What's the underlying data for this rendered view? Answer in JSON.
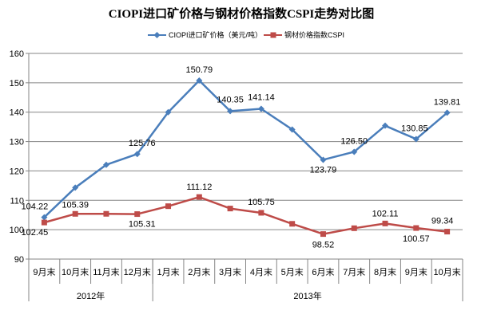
{
  "chart_data": {
    "type": "line",
    "title": "CIOPI进口矿价格与钢材价格指数CSPI走势对比图",
    "categories": [
      "9月末",
      "10月末",
      "11月末",
      "12月末",
      "1月末",
      "2月末",
      "3月末",
      "4月末",
      "5月末",
      "6月末",
      "7月末",
      "8月末",
      "9月末",
      "10月末"
    ],
    "year_groups": [
      {
        "label": "2012年",
        "count": 4
      },
      {
        "label": "2013年",
        "count": 10
      }
    ],
    "ylim": [
      90,
      160
    ],
    "yticks": [
      90,
      100,
      110,
      120,
      130,
      140,
      150,
      160
    ],
    "grid": true,
    "legend_position": "top",
    "series": [
      {
        "name": "CIOPI进口矿价格（美元/吨）",
        "color": "#4a7ebb",
        "marker": "diamond",
        "values": [
          104.22,
          114.3,
          122.1,
          125.76,
          140.0,
          150.79,
          140.35,
          141.14,
          134.1,
          123.79,
          126.5,
          135.4,
          130.85,
          139.81
        ],
        "labels": [
          "104.22",
          "",
          "",
          "125.76",
          "",
          "150.79",
          "140.35",
          "141.14",
          "",
          "123.79",
          "126.50",
          "",
          "130.85",
          "139.81"
        ]
      },
      {
        "name": "钢材价格指数CSPI",
        "color": "#be4b48",
        "marker": "square",
        "values": [
          102.45,
          105.39,
          105.4,
          105.31,
          108.0,
          111.12,
          107.2,
          105.75,
          102.0,
          98.52,
          100.5,
          102.11,
          100.57,
          99.34
        ],
        "labels": [
          "102.45",
          "105.39",
          "",
          "105.31",
          "",
          "111.12",
          "",
          "105.75",
          "",
          "98.52",
          "",
          "102.11",
          "100.57",
          "99.34"
        ]
      }
    ]
  }
}
